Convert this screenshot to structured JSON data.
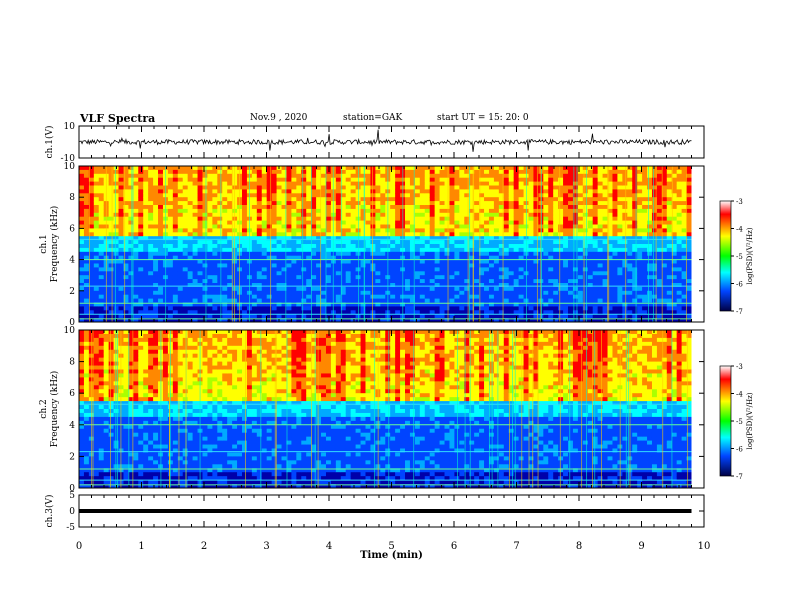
{
  "header": {
    "title": "VLF Spectra",
    "date": "Nov.9  , 2020",
    "station": "station=GAK",
    "start": "start  UT  =   15: 20: 0"
  },
  "colorbar": {
    "label": "log(PSD)(V²/Hz)",
    "ticks": [
      "-3",
      "-4",
      "-5",
      "-6",
      "-7"
    ],
    "colors": [
      "#ff0000",
      "#ff8800",
      "#ffff00",
      "#00ff00",
      "#00ffff",
      "#0066ff",
      "#0000aa"
    ]
  },
  "chart_data": [
    {
      "type": "line",
      "panel": "ch1-waveform",
      "ylabel": "ch.1(V)",
      "ylim": [
        -10,
        10
      ],
      "yticks": [
        "10",
        "-10"
      ],
      "xlim": [
        0,
        10
      ],
      "description_series": {
        "x": [
          0,
          0.5,
          1,
          1.5,
          2,
          2.5,
          3,
          3.5,
          4,
          4.5,
          5,
          5.5,
          6,
          6.5,
          7,
          7.5,
          8,
          8.5,
          9,
          9.5,
          9.8
        ],
        "values": [
          0,
          1,
          -1,
          0.5,
          0,
          -1,
          1,
          0,
          -0.5,
          0.5,
          0,
          1,
          -1,
          0,
          0.5,
          -0.5,
          1,
          0,
          -1,
          0.5,
          0
        ]
      }
    },
    {
      "type": "heatmap",
      "panel": "ch1-spectrogram",
      "ylabel": "ch.1\nFrequency (kHz)",
      "ylim": [
        0,
        10
      ],
      "yticks": [
        "0",
        "2",
        "4",
        "6",
        "8",
        "10"
      ],
      "xlim": [
        0,
        10
      ],
      "color_range": [
        -7,
        -3
      ]
    },
    {
      "type": "heatmap",
      "panel": "ch2-spectrogram",
      "ylabel": "ch.2\nFrequency (kHz)",
      "ylim": [
        0,
        10
      ],
      "yticks": [
        "0",
        "2",
        "4",
        "6",
        "8",
        "10"
      ],
      "xlim": [
        0,
        10
      ],
      "color_range": [
        -7,
        -3
      ]
    },
    {
      "type": "line",
      "panel": "ch3-waveform",
      "ylabel": "ch.3(V)",
      "ylim": [
        -5,
        5
      ],
      "yticks": [
        "5",
        "0",
        "-5"
      ],
      "xlim": [
        0,
        10
      ],
      "x": [
        0,
        9.8
      ],
      "values": [
        0,
        0
      ]
    }
  ],
  "xaxis": {
    "label": "Time (min)",
    "ticks": [
      "0",
      "1",
      "2",
      "3",
      "4",
      "5",
      "6",
      "7",
      "8",
      "9",
      "10"
    ]
  }
}
